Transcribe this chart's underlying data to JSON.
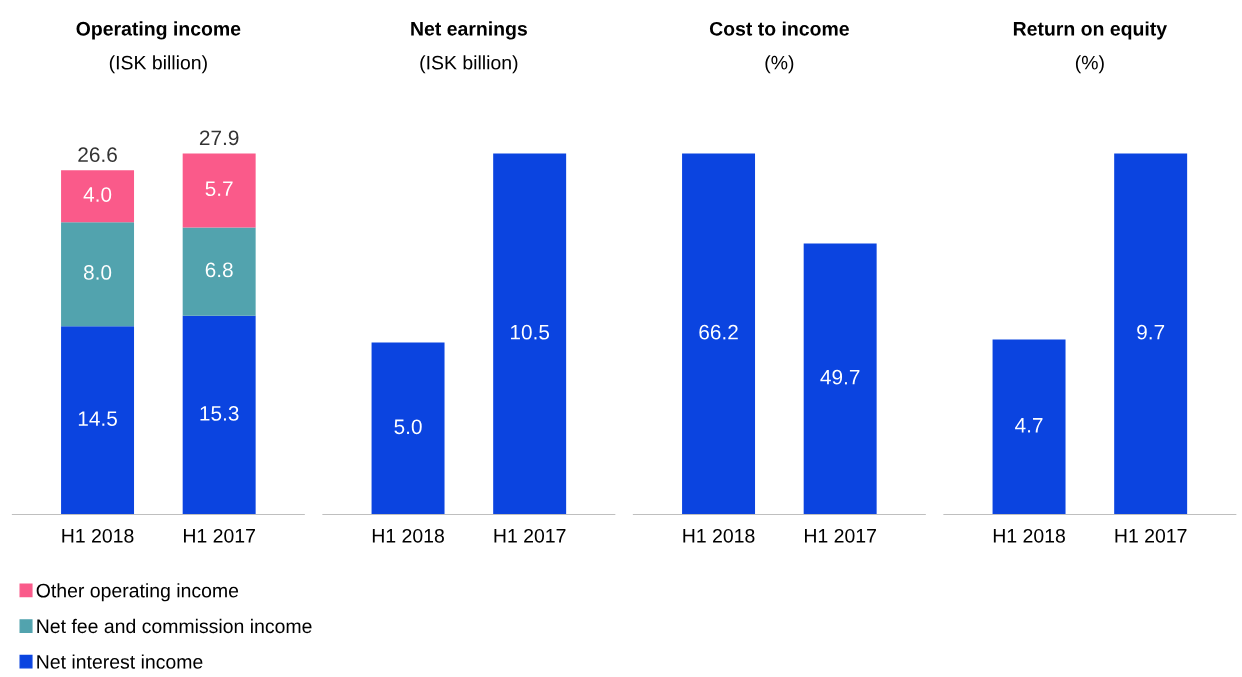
{
  "chart_data": [
    {
      "type": "bar",
      "title": "Operating income",
      "subtitle": "(ISK billion)",
      "categories": [
        "H1 2018",
        "H1 2017"
      ],
      "stacked": true,
      "totals": [
        "26.6",
        "27.9"
      ],
      "legend": "bottom",
      "tick_labels": "x",
      "grid": false,
      "series": [
        {
          "name": "Net interest income",
          "color": "#0b44e0",
          "values": [
            14.5,
            15.3
          ],
          "value_labels": [
            "14.5",
            "15.3"
          ]
        },
        {
          "name": "Net fee and commission income",
          "color": "#52a3ae",
          "values": [
            8.0,
            6.8
          ],
          "value_labels": [
            "8.0",
            "6.8"
          ]
        },
        {
          "name": "Other operating income",
          "color": "#fa5a8a",
          "values": [
            4.0,
            5.7
          ],
          "value_labels": [
            "4.0",
            "5.7"
          ]
        }
      ]
    },
    {
      "type": "bar",
      "title": "Net earnings",
      "subtitle": "(ISK billion)",
      "categories": [
        "H1 2018",
        "H1 2017"
      ],
      "tick_labels": "x",
      "grid": false,
      "series": [
        {
          "color": "#0b44e0",
          "values": [
            5.0,
            10.5
          ],
          "value_labels": [
            "5.0",
            "10.5"
          ]
        }
      ]
    },
    {
      "type": "bar",
      "title": "Cost to income",
      "subtitle": "(%)",
      "categories": [
        "H1 2018",
        "H1 2017"
      ],
      "tick_labels": "x",
      "grid": false,
      "series": [
        {
          "color": "#0b44e0",
          "values": [
            66.2,
            49.7
          ],
          "value_labels": [
            "66.2",
            "49.7"
          ]
        }
      ]
    },
    {
      "type": "bar",
      "title": "Return on equity",
      "subtitle": "(%)",
      "categories": [
        "H1 2018",
        "H1 2017"
      ],
      "tick_labels": "x",
      "grid": false,
      "series": [
        {
          "color": "#0b44e0",
          "values": [
            4.7,
            9.7
          ],
          "value_labels": [
            "4.7",
            "9.7"
          ]
        }
      ]
    }
  ]
}
